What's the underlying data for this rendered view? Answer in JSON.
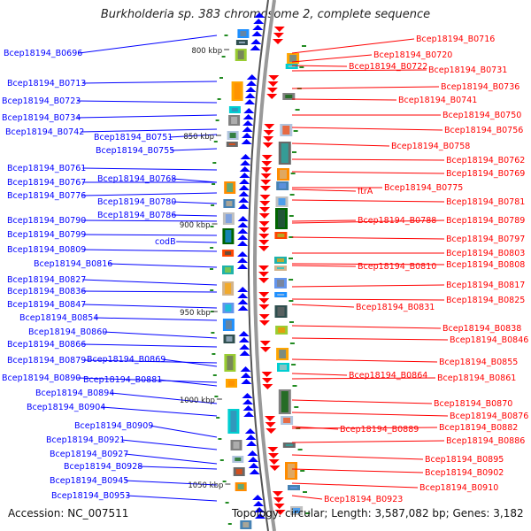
{
  "title": "Burkholderia sp. 383 chromosome 2, complete sequence",
  "accession": "Accession: NC_007511",
  "topology": "Topology: circular; Length: 3,587,082 bp; Genes: 3,182",
  "colors": {
    "left_gene": "#0000ff",
    "right_gene": "#ff0000",
    "backbone_outer": "#999999",
    "backbone_inner": "#555555",
    "minor_tick": "#228b22"
  },
  "scale_labels": [
    "800 kbp",
    "850 kbp",
    "900 kbp",
    "950 kbp",
    "1000 kbp",
    "1050 kbp"
  ],
  "left_genes": [
    "Bcep18194_B0696",
    "Bcep18194_B0713",
    "Bcep18194_B0723",
    "Bcep18194_B0734",
    "Bcep18194_B0742",
    "Bcep18194_B0751",
    "Bcep18194_B0755",
    "Bcep18194_B0761",
    "Bcep18194_B0767",
    "Bcep18194_B0768",
    "Bcep18194_B0776",
    "Bcep18194_B0780",
    "Bcep18194_B0786",
    "Bcep18194_B0790",
    "Bcep18194_B0799",
    "codB",
    "Bcep18194_B0809",
    "Bcep18194_B0816",
    "Bcep18194_B0827",
    "Bcep18194_B0836",
    "Bcep18194_B0847",
    "Bcep18194_B0854",
    "Bcep18194_B0860",
    "Bcep18194_B0866",
    "Bcep18194_B0879",
    "Bcep18194_B0869",
    "Bcep18194_B0890",
    "Bcep18194_B0881",
    "Bcep18194_B0894",
    "Bcep18194_B0904",
    "Bcep18194_B0909",
    "Bcep18194_B0921",
    "Bcep18194_B0927",
    "Bcep18194_B0928",
    "Bcep18194_B0945",
    "Bcep18194_B0953"
  ],
  "right_genes": [
    "Bcep18194_B0716",
    "Bcep18194_B0720",
    "Bcep18194_B0722",
    "Bcep18194_B0731",
    "Bcep18194_B0736",
    "Bcep18194_B0741",
    "Bcep18194_B0750",
    "Bcep18194_B0756",
    "Bcep18194_B0758",
    "Bcep18194_B0762",
    "Bcep18194_B0769",
    "ftrA",
    "Bcep18194_B0775",
    "Bcep18194_B0781",
    "Bcep18194_B0788",
    "Bcep18194_B0789",
    "Bcep18194_B0797",
    "Bcep18194_B0803",
    "Bcep18194_B0810",
    "Bcep18194_B0808",
    "Bcep18194_B0817",
    "Bcep18194_B0825",
    "Bcep18194_B0831",
    "Bcep18194_B0838",
    "Bcep18194_B0846",
    "Bcep18194_B0855",
    "Bcep18194_B0864",
    "Bcep18194_B0861",
    "Bcep18194_B0870",
    "Bcep18194_B0876",
    "Bcep18194_B0889",
    "Bcep18194_B0882",
    "Bcep18194_B0886",
    "Bcep18194_B0895",
    "Bcep18194_B0902",
    "Bcep18194_B0910",
    "Bcep18194_B0923"
  ]
}
